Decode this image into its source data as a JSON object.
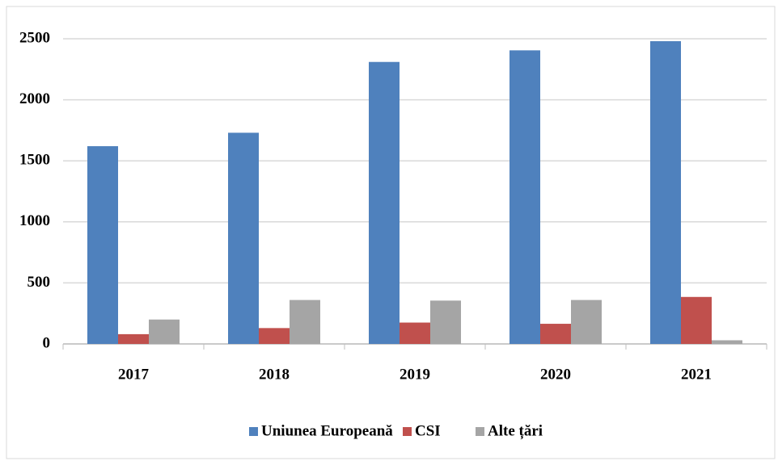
{
  "chart_data": {
    "type": "bar",
    "categories": [
      "2017",
      "2018",
      "2019",
      "2020",
      "2021"
    ],
    "series": [
      {
        "name": "Uniunea Europeană",
        "color": "#4f81bd",
        "values": [
          1620,
          1730,
          2310,
          2405,
          2480
        ]
      },
      {
        "name": "CSI",
        "color": "#c0504d",
        "values": [
          80,
          130,
          175,
          165,
          385
        ]
      },
      {
        "name": "Alte țări",
        "color": "#a5a5a5",
        "values": [
          200,
          360,
          355,
          360,
          30
        ]
      }
    ],
    "ylim": [
      0,
      2500
    ],
    "yticks": [
      0,
      500,
      1000,
      1500,
      2000,
      2500
    ],
    "grid": true,
    "legend": "bottom"
  }
}
